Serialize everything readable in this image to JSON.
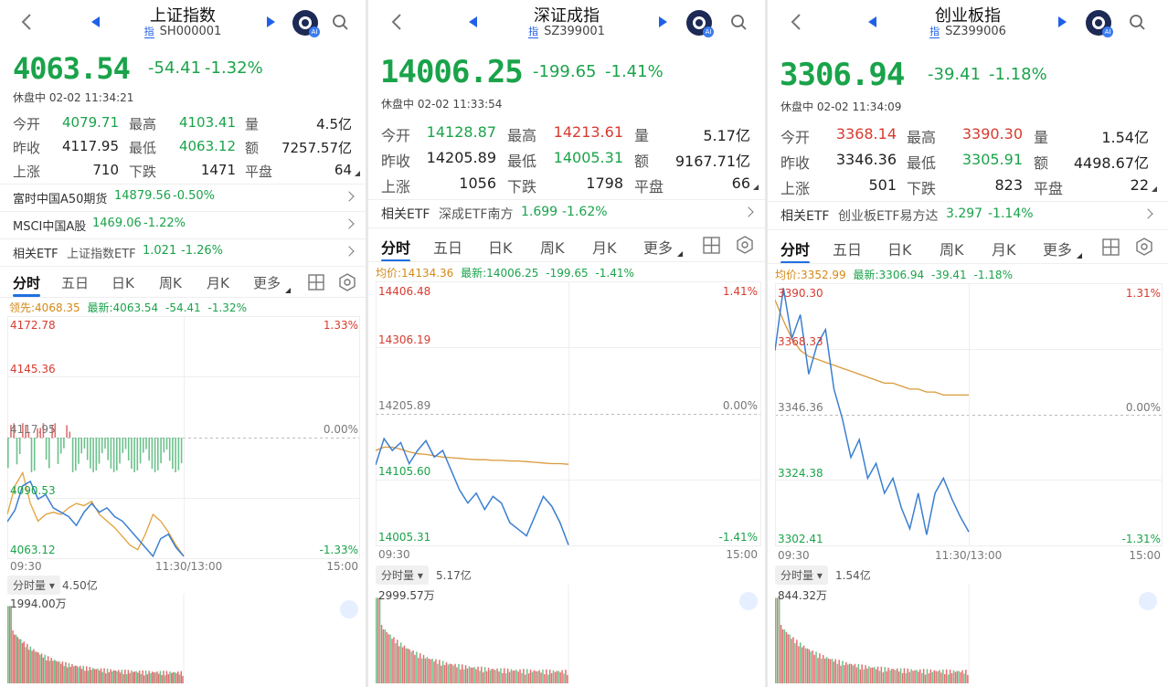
{
  "panels": [
    {
      "title": "上证指数",
      "code_tag": "指",
      "code": "SH000001",
      "price": "4063.54",
      "change": "-54.41",
      "change_pct": "-1.32%",
      "status": "休盘中 02-02 11:34:21",
      "stats": [
        [
          {
            "label": "今开",
            "value": "4079.71",
            "tone": "g"
          },
          {
            "label": "最高",
            "value": "4103.41",
            "tone": "g"
          },
          {
            "label": "量",
            "value": "4.5亿",
            "tone": ""
          }
        ],
        [
          {
            "label": "昨收",
            "value": "4117.95",
            "tone": ""
          },
          {
            "label": "最低",
            "value": "4063.12",
            "tone": "g"
          },
          {
            "label": "额",
            "value": "7257.57亿",
            "tone": ""
          }
        ],
        [
          {
            "label": "上涨",
            "value": "710",
            "tone": ""
          },
          {
            "label": "下跌",
            "value": "1471",
            "tone": ""
          },
          {
            "label": "平盘",
            "value": "64",
            "tone": ""
          }
        ]
      ],
      "links": [
        {
          "name": "富时中国A50期货",
          "value": "14879.56",
          "pct": "-0.50%"
        },
        {
          "name": "MSCI中国A股",
          "value": "1469.06",
          "pct": "-1.22%"
        },
        {
          "name": "相关ETF",
          "sub": "上证指数ETF",
          "value": "1.021",
          "pct": "-1.26%"
        }
      ],
      "tabs": [
        "分时",
        "五日",
        "日K",
        "周K",
        "月K",
        "更多"
      ],
      "legend": {
        "avg_label": "领先:4068.35",
        "last_label": "最新:4063.54",
        "chg": "-54.41",
        "pct": "-1.32%"
      },
      "y_labels": {
        "top": "4172.78",
        "upper": "4145.36",
        "mid": "4117.95",
        "lower": "4090.53",
        "bottom": "4063.12"
      },
      "pct_labels": {
        "top": "1.33%",
        "mid": "0.00%",
        "bottom": "-1.33%"
      },
      "time_labels": {
        "start": "09:30",
        "mid": "11:30/13:00",
        "end": "15:00"
      },
      "vol_pill": "分时量",
      "vol_total": "4.50亿",
      "vol_max": "1994.00万"
    },
    {
      "title": "深证成指",
      "code_tag": "指",
      "code": "SZ399001",
      "price": "14006.25",
      "change": "-199.65",
      "change_pct": "-1.41%",
      "status": "休盘中 02-02 11:33:54",
      "stats": [
        [
          {
            "label": "今开",
            "value": "14128.87",
            "tone": "g"
          },
          {
            "label": "最高",
            "value": "14213.61",
            "tone": "r"
          },
          {
            "label": "量",
            "value": "5.17亿",
            "tone": ""
          }
        ],
        [
          {
            "label": "昨收",
            "value": "14205.89",
            "tone": ""
          },
          {
            "label": "最低",
            "value": "14005.31",
            "tone": "g"
          },
          {
            "label": "额",
            "value": "9167.71亿",
            "tone": ""
          }
        ],
        [
          {
            "label": "上涨",
            "value": "1056",
            "tone": ""
          },
          {
            "label": "下跌",
            "value": "1798",
            "tone": ""
          },
          {
            "label": "平盘",
            "value": "66",
            "tone": ""
          }
        ]
      ],
      "links": [
        {
          "name": "相关ETF",
          "sub": "深成ETF南方",
          "value": "1.699",
          "pct": "-1.62%"
        }
      ],
      "tabs": [
        "分时",
        "五日",
        "日K",
        "周K",
        "月K",
        "更多"
      ],
      "legend": {
        "avg_label": "均价:14134.36",
        "last_label": "最新:14006.25",
        "chg": "-199.65",
        "pct": "-1.41%"
      },
      "y_labels": {
        "top": "14406.48",
        "upper": "14306.19",
        "mid": "14205.89",
        "lower": "14105.60",
        "bottom": "14005.31"
      },
      "pct_labels": {
        "top": "1.41%",
        "mid": "0.00%",
        "bottom": "-1.41%"
      },
      "time_labels": {
        "start": "09:30",
        "mid": "",
        "end": "15:00"
      },
      "vol_pill": "分时量",
      "vol_total": "5.17亿",
      "vol_max": "2999.57万"
    },
    {
      "title": "创业板指",
      "code_tag": "指",
      "code": "SZ399006",
      "price": "3306.94",
      "change": "-39.41",
      "change_pct": "-1.18%",
      "status": "休盘中 02-02 11:34:09",
      "stats": [
        [
          {
            "label": "今开",
            "value": "3368.14",
            "tone": "r"
          },
          {
            "label": "最高",
            "value": "3390.30",
            "tone": "r"
          },
          {
            "label": "量",
            "value": "1.54亿",
            "tone": ""
          }
        ],
        [
          {
            "label": "昨收",
            "value": "3346.36",
            "tone": ""
          },
          {
            "label": "最低",
            "value": "3305.91",
            "tone": "g"
          },
          {
            "label": "额",
            "value": "4498.67亿",
            "tone": ""
          }
        ],
        [
          {
            "label": "上涨",
            "value": "501",
            "tone": ""
          },
          {
            "label": "下跌",
            "value": "823",
            "tone": ""
          },
          {
            "label": "平盘",
            "value": "22",
            "tone": ""
          }
        ]
      ],
      "links": [
        {
          "name": "相关ETF",
          "sub": "创业板ETF易方达",
          "value": "3.297",
          "pct": "-1.14%"
        }
      ],
      "tabs": [
        "分时",
        "五日",
        "日K",
        "周K",
        "月K",
        "更多"
      ],
      "legend": {
        "avg_label": "均价:3352.99",
        "last_label": "最新:3306.94",
        "chg": "-39.41",
        "pct": "-1.18%"
      },
      "y_labels": {
        "top": "3390.30",
        "upper": "3368.33",
        "mid": "3346.36",
        "lower": "3324.38",
        "bottom": "3302.41"
      },
      "pct_labels": {
        "top": "1.31%",
        "mid": "0.00%",
        "bottom": "-1.31%"
      },
      "time_labels": {
        "start": "09:30",
        "mid": "11:30/13:00",
        "end": "15:00"
      },
      "vol_pill": "分时量",
      "vol_total": "1.54亿",
      "vol_max": "844.32万"
    }
  ],
  "chart_data": [
    {
      "type": "line",
      "title": "上证指数",
      "ylim": [
        4063.12,
        4172.78
      ],
      "x_range": [
        "09:30",
        "15:00"
      ],
      "series": [
        {
          "name": "最新",
          "values": [
            4079.7,
            4085,
            4096,
            4098,
            4090,
            4092,
            4086,
            4084,
            4082,
            4078,
            4084,
            4088,
            4084,
            4086,
            4082,
            4080,
            4076,
            4072,
            4068,
            4064,
            4072,
            4074,
            4068,
            4064
          ]
        },
        {
          "name": "领先",
          "values": [
            4083,
            4096,
            4102,
            4088,
            4080,
            4083,
            4084,
            4083,
            4086,
            4088,
            4087,
            4089,
            4083,
            4080,
            4077,
            4073,
            4069,
            4067,
            4074,
            4083,
            4080,
            4075,
            4069,
            4064
          ]
        }
      ],
      "color_line": "#3b7fd1",
      "color_avg": "#e0a13a"
    },
    {
      "type": "line",
      "title": "深证成指",
      "ylim": [
        14005.31,
        14406.48
      ],
      "x_range": [
        "09:30",
        "15:00"
      ],
      "series": [
        {
          "name": "最新",
          "values": [
            14128,
            14168,
            14150,
            14162,
            14130,
            14150,
            14165,
            14140,
            14150,
            14120,
            14090,
            14070,
            14085,
            14060,
            14080,
            14070,
            14040,
            14030,
            14020,
            14050,
            14080,
            14065,
            14040,
            14006
          ]
        },
        {
          "name": "均价",
          "values": [
            14150,
            14155,
            14155,
            14152,
            14148,
            14145,
            14144,
            14142,
            14140,
            14139,
            14138,
            14137,
            14136,
            14136,
            14135,
            14135,
            14134,
            14134,
            14133,
            14132,
            14131,
            14130,
            14130,
            14129
          ]
        }
      ],
      "color_line": "#3b7fd1",
      "color_avg": "#d99a3a"
    },
    {
      "type": "line",
      "title": "创业板指",
      "ylim": [
        3302.41,
        3390.3
      ],
      "x_range": [
        "09:30",
        "15:00"
      ],
      "series": [
        {
          "name": "最新",
          "values": [
            3368,
            3389,
            3372,
            3380,
            3360,
            3370,
            3375,
            3355,
            3345,
            3332,
            3338,
            3325,
            3330,
            3320,
            3325,
            3315,
            3308,
            3320,
            3306,
            3320,
            3325,
            3318,
            3312,
            3307
          ]
        },
        {
          "name": "均价",
          "values": [
            3385,
            3378,
            3372,
            3368,
            3366,
            3365,
            3364,
            3363,
            3362,
            3361,
            3360,
            3359,
            3358,
            3357,
            3357,
            3356,
            3355,
            3355,
            3354,
            3354,
            3353,
            3353,
            3353,
            3353
          ]
        }
      ],
      "color_line": "#3b7fd1",
      "color_avg": "#d99a3a"
    }
  ],
  "colors": {
    "up": "#d83a2e",
    "down": "#1aa34a",
    "accent": "#2060e8",
    "line": "#3b7fd1",
    "avg": "#e0a13a"
  }
}
